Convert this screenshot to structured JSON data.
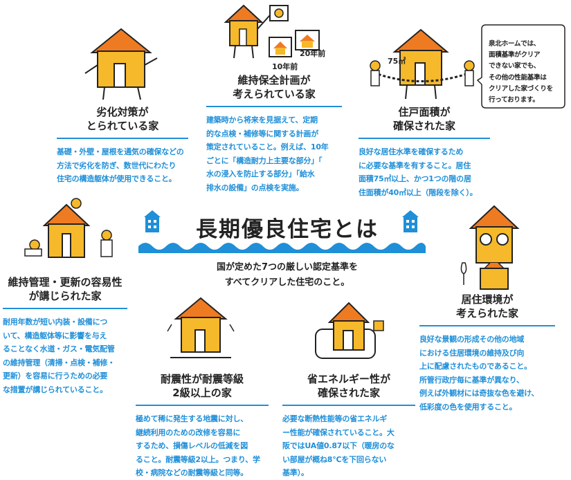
{
  "center": {
    "title": "長期優良住宅とは",
    "subtitle": "国が定めた7つの厳しい認定基準を\nすべてクリアした住宅のこと。"
  },
  "bubble": {
    "text": "泉北ホームでは、\n面積基準がクリア\nできない家でも、\nその他の性能基準は\nクリアした家づくりを\n行っております。"
  },
  "illustration_labels": {
    "m2": "75㎡",
    "ten_years": "10年前",
    "twenty_years": "20年前"
  },
  "cards": {
    "deterioration": {
      "title": "劣化対策が\nとられている家",
      "body": "基礎・外壁・屋根を通気の確保などの\n方法で劣化を防ぎ、数世代にわたり\n住宅の構造躯体が使用できること。"
    },
    "maintenance_plan": {
      "title": "維持保全計画が\n考えられている家",
      "body": "建築時から将来を見据えて、定期\n的な点検・補修等に関する計画が\n策定されていること。例えば、10年\nごとに「構造耐力上主要な部分」「\n水の浸入を防止する部分」「給水\n排水の設備」の点検を実施。"
    },
    "floor_area": {
      "title": "住戸面積が\n確保された家",
      "body": "良好な居住水準を確保するため\nに必要な基準を有すること。居住\n面積75㎡以上、かつ1つの階の居\n住面積が40㎡以上（階段を除く）。"
    },
    "ease_of_maintenance": {
      "title": "維持管理・更新の容易性\nが講じられた家",
      "body": "耐用年数が短い内装・設備につ\nいて、構造躯体等に影響を与え\nることなく水道・ガス・電気配管\nの維持管理（清掃・点検・補修・\n更新）を容易に行うための必要\nな措置が講じられていること。"
    },
    "seismic": {
      "title": "耐震性が耐震等級\n2級以上の家",
      "body": "極めて稀に発生する地震に対し、\n継続利用のための改修を容易に\nするため、損傷レベルの低減を図\nること。耐震等級2以上。つまり、学\n校・病院などの耐震等級と同等。"
    },
    "energy": {
      "title": "省エネルギー性が\n確保された家",
      "body": "必要な断熱性能等の省エネルギ\nー性能が確保されていること。大\n阪ではUA値0.87以下（暖房のな\nい部屋が概ね8℃を下回らない\n基準）。"
    },
    "environment": {
      "title": "居住環境が\n考えられた家",
      "body": "良好な景観の形成その他の地域\nにおける住居環境の維持及び向\n上に配慮されたものであること。\n所管行政庁毎に基準が異なり、\n例えば外観材には奇抜な色を避け、\n低彩度の色を使用すること。"
    }
  },
  "colors": {
    "accent_blue": "#1f8fd8",
    "roof_orange": "#ee7b22",
    "house_yellow": "#f6b92b",
    "text_dark": "#222222"
  }
}
